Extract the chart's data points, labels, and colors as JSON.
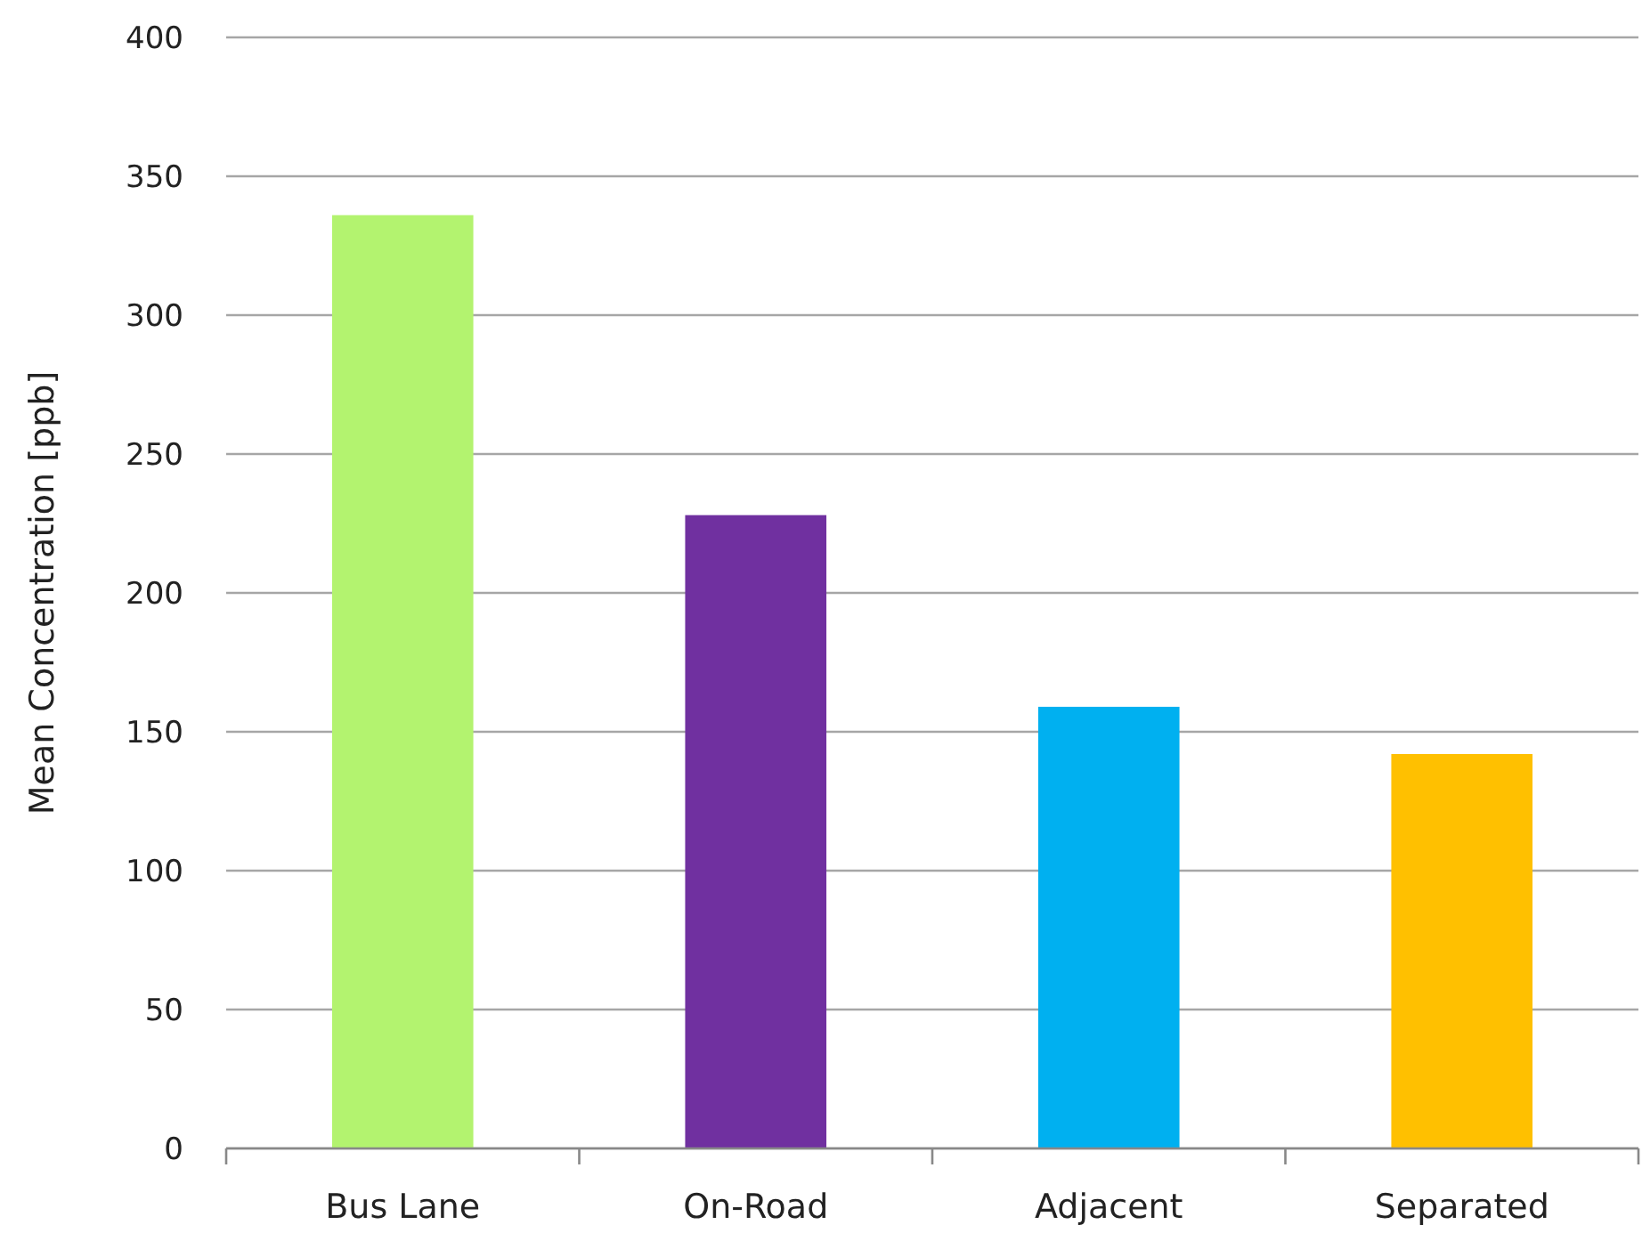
{
  "chart_data": {
    "type": "bar",
    "ylabel": "Mean Concentration [ppb]",
    "categories": [
      "Bus Lane",
      "On-Road",
      "Adjacent",
      "Separated"
    ],
    "values": [
      336,
      228,
      159,
      142
    ],
    "colors": [
      "#b3f36f",
      "#7030a0",
      "#00b0f0",
      "#ffc000"
    ],
    "ylim": [
      0,
      400
    ],
    "yticks": [
      0,
      50,
      100,
      150,
      200,
      250,
      300,
      350,
      400
    ],
    "grid": "y"
  }
}
